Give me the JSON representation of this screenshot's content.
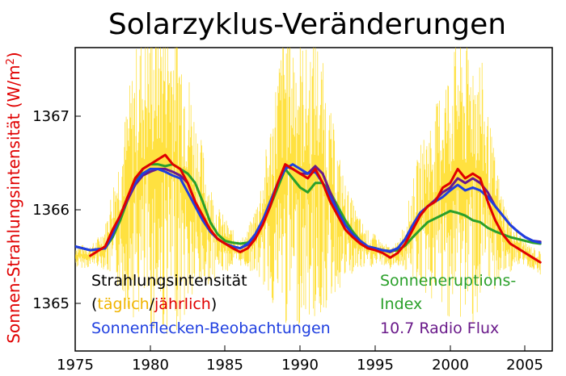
{
  "chart_data": {
    "type": "line",
    "title": "Solarzyklus-Veränderungen",
    "ylabel_main": "Sonnen-Strahlungsintensität (W/m",
    "ylabel_sup": "2",
    "ylabel_close": ")",
    "xlabel": "",
    "xlim": [
      1975,
      2006.8
    ],
    "ylim": [
      1364.5,
      1367.75
    ],
    "x_ticks": [
      "1975",
      "1980",
      "1985",
      "1990",
      "1995",
      "2000",
      "2005"
    ],
    "y_ticks": [
      "1365",
      "1366",
      "1367"
    ],
    "grid": false,
    "legend": {
      "irradiance_label": "Strahlungsintensität",
      "open_paren": "(",
      "daily": "täglich",
      "slash": "/",
      "yearly": "jährlich",
      "close_paren": ")",
      "flare_line1": "Sonneneruptions-",
      "flare_line2": "Index",
      "sunspot": "Sonnenflecken-Beobachtungen",
      "radio": "10.7 Radio Flux"
    },
    "colors": {
      "daily": "#ffd700",
      "yearly": "#e00000",
      "flare": "#2aa02a",
      "sunspot": "#1f3fe0",
      "radio": "#6a1a8a",
      "text": "#000000"
    },
    "series": [
      {
        "key": "yearly",
        "x": [
          1976.0,
          1977.0,
          1977.5,
          1978.0,
          1978.5,
          1979.0,
          1979.5,
          1980.0,
          1980.5,
          1981.0,
          1981.5,
          1982.0,
          1982.5,
          1983.0,
          1983.5,
          1984.0,
          1984.5,
          1985.0,
          1985.5,
          1986.0,
          1986.5,
          1987.0,
          1987.5,
          1988.0,
          1988.5,
          1989.0,
          1989.5,
          1990.0,
          1990.5,
          1991.0,
          1991.5,
          1992.0,
          1992.5,
          1993.0,
          1993.5,
          1994.0,
          1994.5,
          1995.0,
          1995.5,
          1996.0,
          1996.5,
          1997.0,
          1997.5,
          1998.0,
          1998.5,
          1999.0,
          1999.5,
          2000.0,
          2000.5,
          2001.0,
          2001.5,
          2002.0,
          2002.5,
          2003.0,
          2003.5,
          2004.0,
          2004.5,
          2005.0,
          2005.5,
          2006.0
        ],
        "y": [
          1365.52,
          1365.62,
          1365.8,
          1365.95,
          1366.15,
          1366.35,
          1366.45,
          1366.5,
          1366.55,
          1366.6,
          1366.5,
          1366.45,
          1366.3,
          1366.1,
          1365.95,
          1365.8,
          1365.7,
          1365.65,
          1365.6,
          1365.56,
          1365.6,
          1365.7,
          1365.85,
          1366.05,
          1366.3,
          1366.5,
          1366.45,
          1366.4,
          1366.35,
          1366.45,
          1366.3,
          1366.1,
          1365.95,
          1365.8,
          1365.72,
          1365.65,
          1365.6,
          1365.58,
          1365.55,
          1365.5,
          1365.55,
          1365.65,
          1365.8,
          1365.95,
          1366.05,
          1366.1,
          1366.25,
          1366.3,
          1366.45,
          1366.35,
          1366.4,
          1366.35,
          1366.1,
          1365.9,
          1365.75,
          1365.65,
          1365.6,
          1365.55,
          1365.5,
          1365.45
        ]
      },
      {
        "key": "sunspot",
        "x": [
          1975.0,
          1976.0,
          1977.0,
          1977.5,
          1978.0,
          1978.5,
          1979.0,
          1979.5,
          1980.0,
          1980.5,
          1981.0,
          1981.5,
          1982.0,
          1982.5,
          1983.0,
          1983.5,
          1984.0,
          1984.5,
          1985.0,
          1985.5,
          1986.0,
          1986.5,
          1987.0,
          1987.5,
          1988.0,
          1988.5,
          1989.0,
          1989.5,
          1990.0,
          1990.5,
          1991.0,
          1991.5,
          1992.0,
          1992.5,
          1993.0,
          1993.5,
          1994.0,
          1994.5,
          1995.0,
          1995.5,
          1996.0,
          1996.5,
          1997.0,
          1997.5,
          1998.0,
          1998.5,
          1999.0,
          1999.5,
          2000.0,
          2000.5,
          2001.0,
          2001.5,
          2002.0,
          2002.5,
          2003.0,
          2003.5,
          2004.0,
          2004.5,
          2005.0,
          2005.5,
          2006.0
        ],
        "y": [
          1365.62,
          1365.58,
          1365.6,
          1365.75,
          1365.95,
          1366.15,
          1366.3,
          1366.4,
          1366.45,
          1366.45,
          1366.42,
          1366.38,
          1366.35,
          1366.2,
          1366.05,
          1365.9,
          1365.78,
          1365.7,
          1365.65,
          1365.62,
          1365.6,
          1365.65,
          1365.75,
          1365.9,
          1366.1,
          1366.3,
          1366.45,
          1366.5,
          1366.45,
          1366.4,
          1366.42,
          1366.3,
          1366.15,
          1366.0,
          1365.85,
          1365.75,
          1365.68,
          1365.62,
          1365.6,
          1365.58,
          1365.57,
          1365.6,
          1365.7,
          1365.85,
          1365.98,
          1366.05,
          1366.1,
          1366.15,
          1366.22,
          1366.28,
          1366.22,
          1366.25,
          1366.22,
          1366.15,
          1366.05,
          1365.95,
          1365.85,
          1365.78,
          1365.72,
          1365.68,
          1365.66
        ]
      },
      {
        "key": "flare",
        "x": [
          1975.0,
          1976.0,
          1977.0,
          1977.5,
          1978.0,
          1978.5,
          1979.0,
          1979.5,
          1980.0,
          1980.5,
          1981.0,
          1981.5,
          1982.0,
          1982.5,
          1983.0,
          1983.5,
          1984.0,
          1984.5,
          1985.0,
          1985.5,
          1986.0,
          1986.5,
          1987.0,
          1987.5,
          1988.0,
          1988.5,
          1989.0,
          1989.5,
          1990.0,
          1990.5,
          1991.0,
          1991.5,
          1992.0,
          1992.5,
          1993.0,
          1993.5,
          1994.0,
          1994.5,
          1995.0,
          1995.5,
          1996.0,
          1996.5,
          1997.0,
          1997.5,
          1998.0,
          1998.5,
          1999.0,
          1999.5,
          2000.0,
          2000.5,
          2001.0,
          2001.5,
          2002.0,
          2002.5,
          2003.0,
          2003.5,
          2004.0,
          2004.5,
          2005.0,
          2005.5,
          2006.0
        ],
        "y": [
          1365.62,
          1365.58,
          1365.6,
          1365.72,
          1365.9,
          1366.12,
          1366.3,
          1366.45,
          1366.5,
          1366.5,
          1366.48,
          1366.5,
          1366.45,
          1366.4,
          1366.3,
          1366.1,
          1365.88,
          1365.75,
          1365.68,
          1365.66,
          1365.65,
          1365.66,
          1365.72,
          1365.88,
          1366.05,
          1366.25,
          1366.45,
          1366.35,
          1366.25,
          1366.2,
          1366.3,
          1366.3,
          1366.2,
          1366.05,
          1365.9,
          1365.78,
          1365.68,
          1365.62,
          1365.6,
          1365.58,
          1365.57,
          1365.58,
          1365.63,
          1365.72,
          1365.8,
          1365.88,
          1365.92,
          1365.96,
          1366.0,
          1365.98,
          1365.95,
          1365.9,
          1365.88,
          1365.82,
          1365.78,
          1365.75,
          1365.72,
          1365.7,
          1365.68,
          1365.66,
          1365.65
        ]
      },
      {
        "key": "radio",
        "x": [
          1975.0,
          1976.0,
          1977.0,
          1977.5,
          1978.0,
          1978.5,
          1979.0,
          1979.5,
          1980.0,
          1980.5,
          1981.0,
          1981.5,
          1982.0,
          1982.5,
          1983.0,
          1983.5,
          1984.0,
          1984.5,
          1985.0,
          1985.5,
          1986.0,
          1986.5,
          1987.0,
          1987.5,
          1988.0,
          1988.5,
          1989.0,
          1989.5,
          1990.0,
          1990.5,
          1991.0,
          1991.5,
          1992.0,
          1992.5,
          1993.0,
          1993.5,
          1994.0,
          1994.5,
          1995.0,
          1995.5,
          1996.0,
          1996.5,
          1997.0,
          1997.5,
          1998.0,
          1998.5,
          1999.0,
          1999.5,
          2000.0,
          2000.5,
          2001.0,
          2001.5,
          2002.0,
          2002.5,
          2003.0,
          2003.5,
          2004.0,
          2004.5,
          2005.0,
          2005.5,
          2006.0
        ],
        "y": [
          1365.62,
          1365.58,
          1365.6,
          1365.75,
          1365.95,
          1366.12,
          1366.28,
          1366.38,
          1366.42,
          1366.45,
          1366.45,
          1366.42,
          1366.38,
          1366.3,
          1366.1,
          1365.92,
          1365.78,
          1365.7,
          1365.65,
          1365.62,
          1365.6,
          1365.64,
          1365.74,
          1365.9,
          1366.08,
          1366.3,
          1366.48,
          1366.45,
          1366.4,
          1366.4,
          1366.48,
          1366.4,
          1366.2,
          1366.0,
          1365.85,
          1365.75,
          1365.68,
          1365.62,
          1365.6,
          1365.58,
          1365.56,
          1365.6,
          1365.7,
          1365.85,
          1365.98,
          1366.05,
          1366.12,
          1366.2,
          1366.25,
          1366.35,
          1366.3,
          1366.35,
          1366.3,
          1366.2,
          1366.05,
          1365.95,
          1365.85,
          1365.78,
          1365.72,
          1365.68,
          1365.67
        ]
      }
    ]
  }
}
